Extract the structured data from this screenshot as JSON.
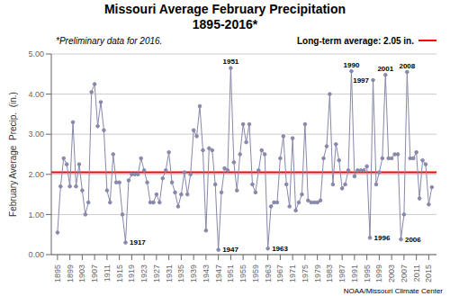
{
  "chart_data": {
    "type": "line",
    "title": "Missouri Average February Precipitation",
    "subtitle": "1895-2016*",
    "y_label": "February Average  Precip.  (in.)",
    "note": "*Preliminary data for 2016.",
    "source": "NOAA/Missouri Climate Center",
    "color": "#8888AA",
    "marker": "circle",
    "grid": "y",
    "xlim": [
      1893,
      2017.5
    ],
    "xticks": [
      1895,
      1899,
      1903,
      1907,
      1911,
      1915,
      1919,
      1923,
      1927,
      1931,
      1935,
      1939,
      1943,
      1947,
      1951,
      1955,
      1959,
      1963,
      1967,
      1971,
      1975,
      1979,
      1983,
      1987,
      1991,
      1995,
      1999,
      2003,
      2007,
      2011,
      2015
    ],
    "ylim": [
      0.0,
      5.0
    ],
    "yticks": [
      {
        "value": 0.0,
        "label": "0.00"
      },
      {
        "value": 1.0,
        "label": "1.00"
      },
      {
        "value": 2.0,
        "label": "2.00"
      },
      {
        "value": 3.0,
        "label": "3.00"
      },
      {
        "value": 4.0,
        "label": "4.00"
      },
      {
        "value": 5.0,
        "label": "5.00"
      }
    ],
    "reference_lines": [
      {
        "y": 2.05,
        "label": "Long-term average: 2.05 in.",
        "color": "#FF0000"
      }
    ],
    "annotations": [
      {
        "x": 1951,
        "y": 4.65,
        "label": "1951"
      },
      {
        "x": 1990,
        "y": 4.57,
        "label": "1990"
      },
      {
        "x": 1997,
        "y": 4.35,
        "label": "1997"
      },
      {
        "x": 2001,
        "y": 4.48,
        "label": "2001"
      },
      {
        "x": 2008,
        "y": 4.55,
        "label": "2008"
      },
      {
        "x": 1917,
        "y": 0.3,
        "label": "1917"
      },
      {
        "x": 1947,
        "y": 0.12,
        "label": "1947"
      },
      {
        "x": 1963,
        "y": 0.15,
        "label": "1963"
      },
      {
        "x": 1996,
        "y": 0.42,
        "label": "1996"
      },
      {
        "x": 2006,
        "y": 0.38,
        "label": "2006"
      }
    ],
    "x": [
      1895,
      1896,
      1897,
      1898,
      1899,
      1900,
      1901,
      1902,
      1903,
      1904,
      1905,
      1906,
      1907,
      1908,
      1909,
      1910,
      1911,
      1912,
      1913,
      1914,
      1915,
      1916,
      1917,
      1918,
      1919,
      1920,
      1921,
      1922,
      1923,
      1924,
      1925,
      1926,
      1927,
      1928,
      1929,
      1930,
      1931,
      1932,
      1933,
      1934,
      1935,
      1936,
      1937,
      1938,
      1939,
      1940,
      1941,
      1942,
      1943,
      1944,
      1945,
      1946,
      1947,
      1948,
      1949,
      1950,
      1951,
      1952,
      1953,
      1954,
      1955,
      1956,
      1957,
      1958,
      1959,
      1960,
      1961,
      1962,
      1963,
      1964,
      1965,
      1966,
      1967,
      1968,
      1969,
      1970,
      1971,
      1972,
      1973,
      1974,
      1975,
      1976,
      1977,
      1978,
      1979,
      1980,
      1981,
      1982,
      1983,
      1984,
      1985,
      1986,
      1987,
      1988,
      1989,
      1990,
      1991,
      1992,
      1993,
      1994,
      1995,
      1996,
      1997,
      1998,
      1999,
      2000,
      2001,
      2002,
      2003,
      2004,
      2005,
      2006,
      2007,
      2008,
      2009,
      2010,
      2011,
      2012,
      2013,
      2014,
      2015,
      2016
    ],
    "values": [
      0.55,
      1.7,
      2.4,
      2.25,
      1.7,
      3.3,
      1.7,
      2.25,
      1.6,
      1.0,
      1.3,
      4.05,
      4.25,
      3.2,
      3.8,
      3.1,
      1.6,
      1.3,
      2.5,
      1.8,
      1.8,
      1.0,
      0.3,
      1.85,
      2.0,
      2.0,
      2.0,
      2.4,
      2.1,
      1.8,
      1.3,
      1.3,
      1.5,
      1.3,
      1.9,
      2.1,
      2.55,
      1.8,
      1.55,
      1.2,
      1.5,
      2.05,
      1.5,
      2.0,
      3.1,
      2.95,
      3.7,
      2.6,
      0.6,
      2.65,
      2.6,
      1.75,
      0.12,
      1.55,
      2.15,
      2.1,
      4.65,
      2.3,
      1.6,
      2.5,
      3.25,
      2.8,
      3.25,
      1.75,
      1.55,
      2.1,
      2.6,
      2.5,
      0.15,
      1.2,
      1.3,
      1.3,
      2.4,
      2.95,
      1.75,
      1.2,
      2.9,
      1.1,
      1.3,
      1.5,
      3.25,
      1.35,
      1.3,
      1.3,
      1.3,
      1.35,
      2.4,
      2.7,
      4.0,
      1.75,
      2.75,
      2.35,
      1.65,
      1.75,
      2.1,
      4.57,
      1.95,
      2.1,
      2.1,
      2.1,
      2.2,
      0.42,
      4.35,
      1.75,
      2.05,
      2.4,
      4.48,
      2.4,
      2.4,
      2.5,
      2.5,
      0.38,
      1.0,
      4.55,
      2.4,
      2.4,
      2.55,
      1.4,
      2.35,
      2.25,
      1.25,
      1.68
    ]
  }
}
